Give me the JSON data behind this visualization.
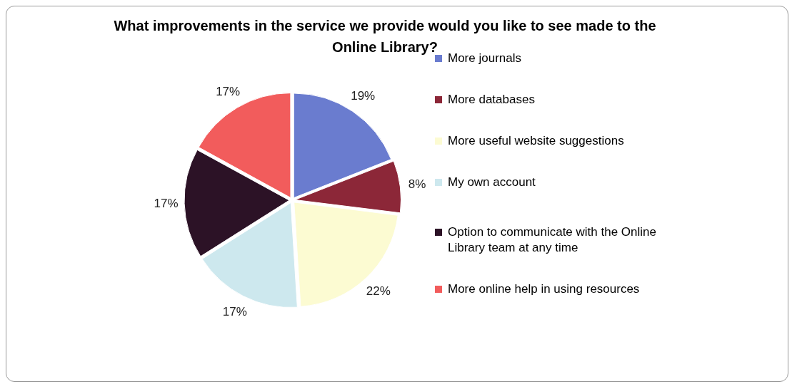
{
  "chart_data": {
    "type": "pie",
    "title": "What improvements in the service we provide would you like to see made to the Online Library?",
    "categories": [
      "More journals",
      "More databases",
      "More useful website suggestions",
      "My own account",
      "Option to communicate with the Online Library team at any time",
      "More online help in using resources"
    ],
    "values": [
      19,
      8,
      22,
      17,
      17,
      17
    ],
    "value_labels": [
      "19%",
      "8%",
      "22%",
      "17%",
      "17%",
      "17%"
    ],
    "colors": [
      "#6a7ccf",
      "#8c2738",
      "#fcfbd2",
      "#cde8ee",
      "#2c1226",
      "#f25c5c"
    ],
    "legend": "right"
  }
}
